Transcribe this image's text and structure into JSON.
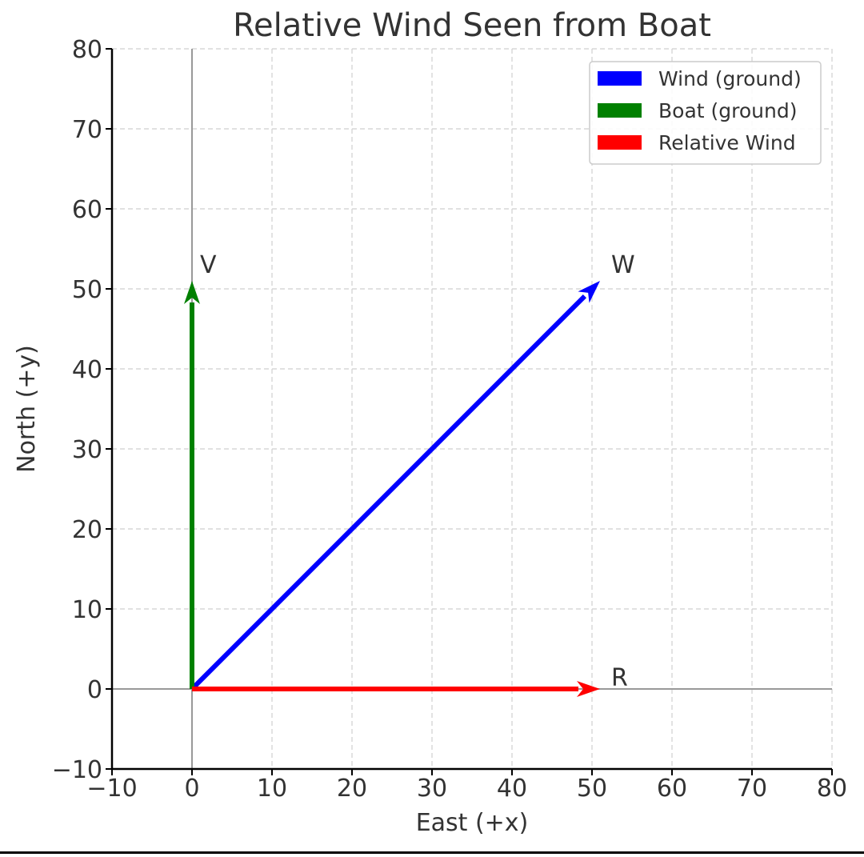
{
  "chart_data": {
    "type": "line",
    "title": "Relative Wind Seen from Boat",
    "xlabel": "East (+x)",
    "ylabel": "North (+y)",
    "xlim": [
      -10,
      80
    ],
    "ylim": [
      -10,
      80
    ],
    "xticks": [
      "−10",
      "0",
      "10",
      "20",
      "30",
      "40",
      "50",
      "60",
      "70",
      "80"
    ],
    "yticks": [
      "−10",
      "0",
      "10",
      "20",
      "30",
      "40",
      "50",
      "60",
      "70",
      "80"
    ],
    "grid": true,
    "legend_position": "top-right",
    "series": [
      {
        "name": "Wind (ground)",
        "color": "#0000ff",
        "label": "W",
        "x": [
          0,
          51
        ],
        "y": [
          0,
          51
        ]
      },
      {
        "name": "Boat (ground)",
        "color": "#008000",
        "label": "V",
        "x": [
          0,
          0
        ],
        "y": [
          0,
          51
        ]
      },
      {
        "name": "Relative Wind",
        "color": "#ff0000",
        "label": "R",
        "x": [
          0,
          51
        ],
        "y": [
          0,
          0
        ]
      }
    ]
  }
}
